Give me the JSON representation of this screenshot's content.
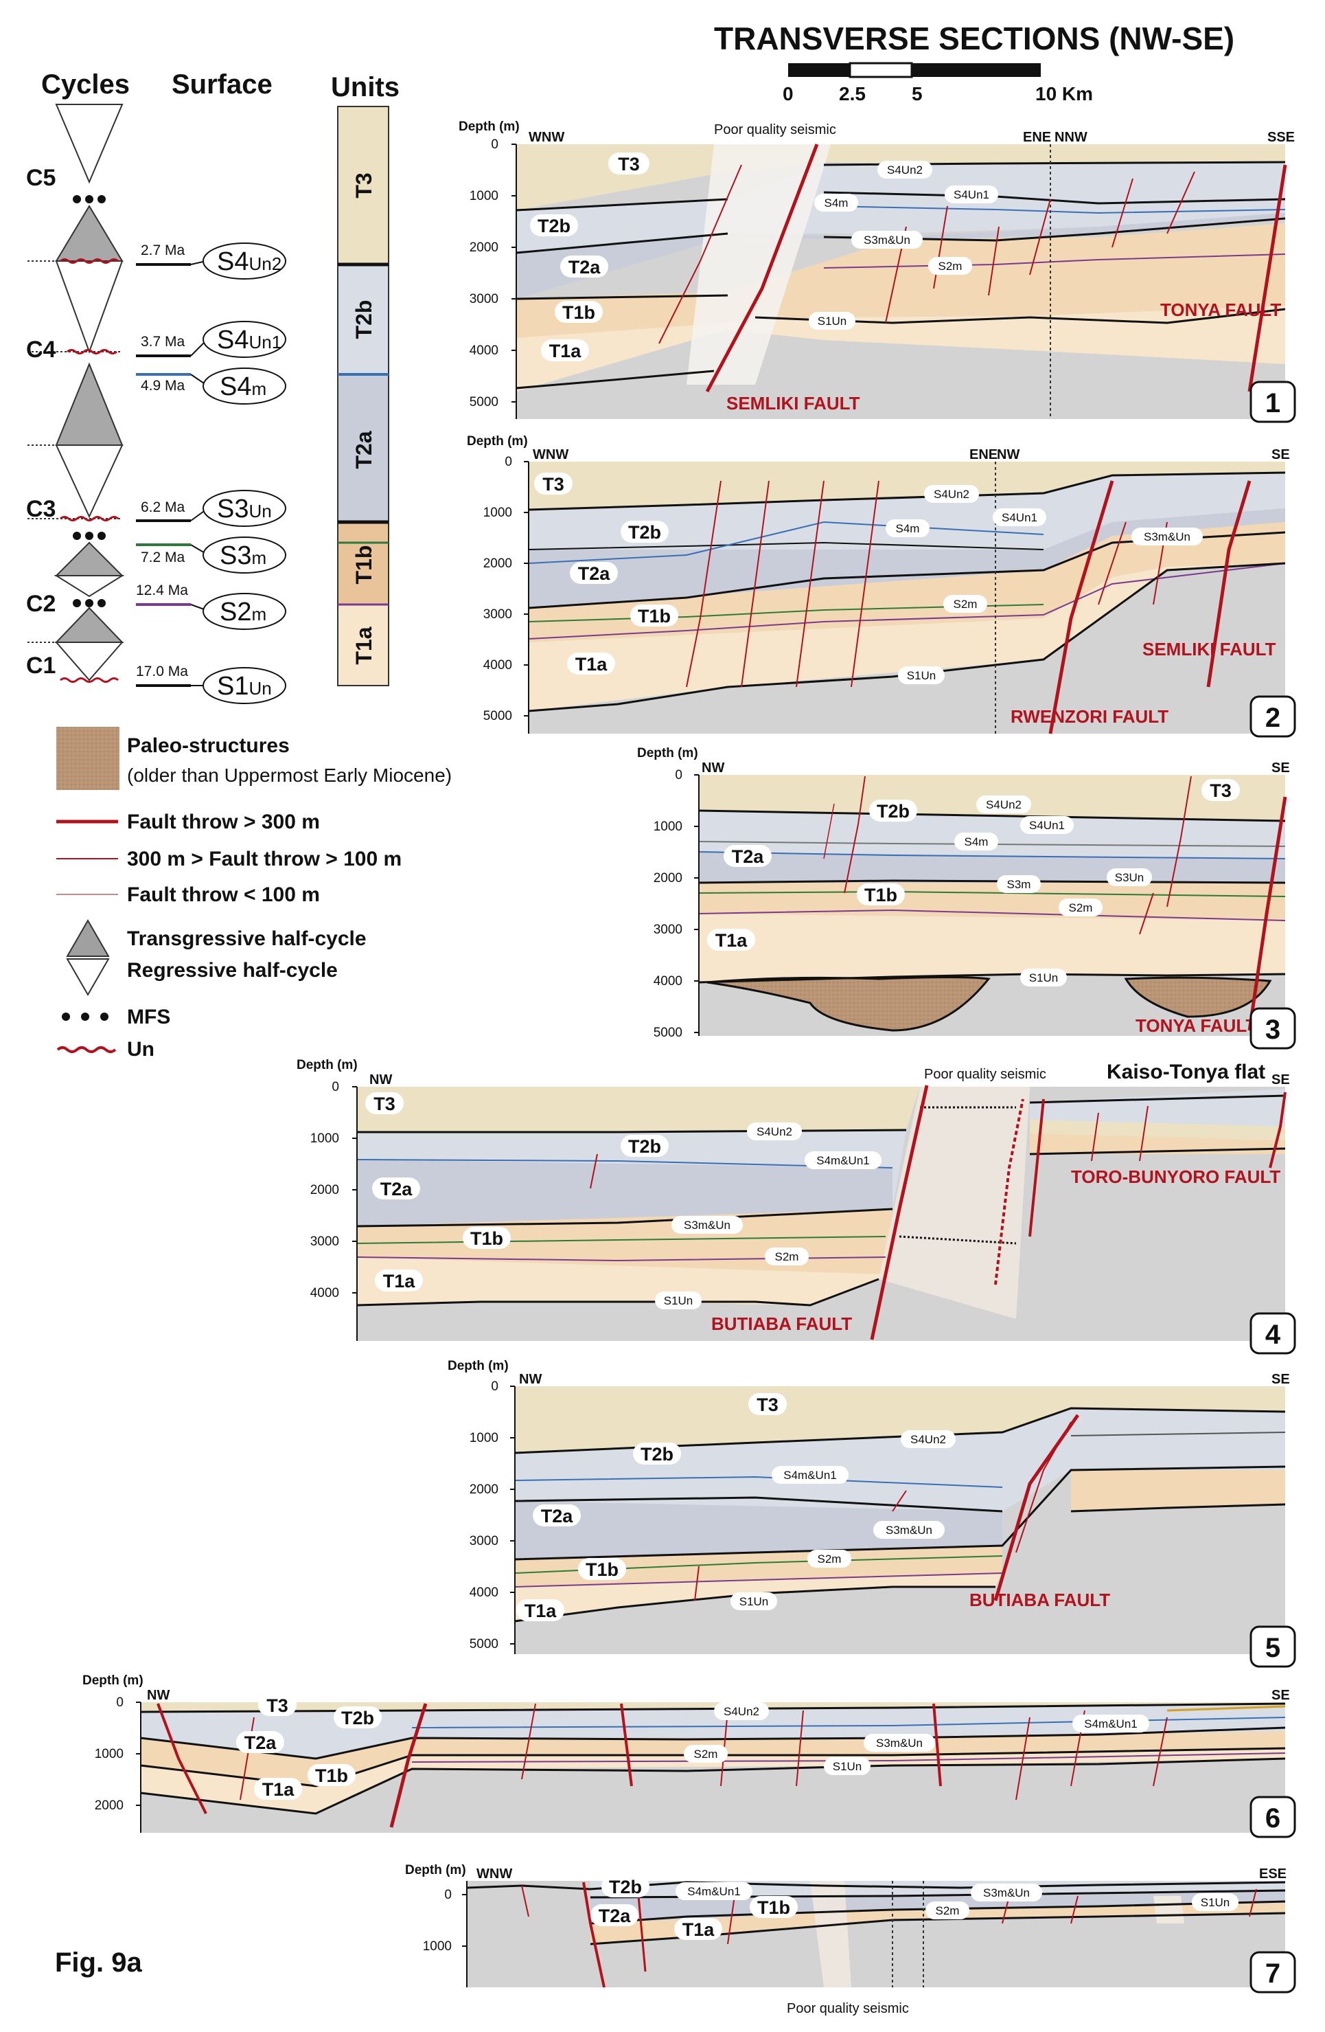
{
  "title": "TRANSVERSE SECTIONS (NW-SE)",
  "scale_bar": {
    "labels": [
      "0",
      "2.5",
      "5",
      "10 Km"
    ]
  },
  "figure_label": "Fig. 9a",
  "poor_quality_label": "Poor quality seismic",
  "depth_label": "Depth (m)",
  "column_headers": {
    "cycles": "Cycles",
    "surface": "Surface",
    "units": "Units"
  },
  "cycles": [
    "C5",
    "C4",
    "C3",
    "C2",
    "C1"
  ],
  "surfaces": [
    {
      "age": "2.7 Ma",
      "name": "S4",
      "sub": "Un2"
    },
    {
      "age": "3.7 Ma",
      "name": "S4",
      "sub": "Un1"
    },
    {
      "age": "4.9 Ma",
      "name": "S4",
      "sub": "m"
    },
    {
      "age": "6.2 Ma",
      "name": "S3",
      "sub": "Un"
    },
    {
      "age": "7.2 Ma",
      "name": "S3",
      "sub": "m"
    },
    {
      "age": "12.4 Ma",
      "name": "S2",
      "sub": "m"
    },
    {
      "age": "17.0 Ma",
      "name": "S1",
      "sub": "Un"
    }
  ],
  "units_column": [
    "T3",
    "T2b",
    "T2a",
    "T1b",
    "T1a"
  ],
  "legend": {
    "paleo_title": "Paleo-structures",
    "paleo_sub": "(older than Uppermost Early Miocene)",
    "fault_major": "Fault throw > 300 m",
    "fault_medium": "300 m > Fault throw > 100 m",
    "fault_minor": "Fault throw < 100 m",
    "transgressive": "Transgressive half-cycle",
    "regressive": "Regressive half-cycle",
    "mfs": "MFS",
    "un": "Un"
  },
  "colors": {
    "T3": "#ece2c3",
    "T2b": "#d9dde6",
    "T2a": "#c9ccd9",
    "T1b": "#f2d8b5",
    "T1a": "#f8e6cc",
    "basement": "#d3d3d3",
    "paleo": "#b99575",
    "fault_red": "#b2121e",
    "s4m_blue": "#3a6fb5",
    "s3m_green": "#2f7a3a",
    "s2m_purple": "#7a3a8e"
  },
  "sections": [
    {
      "number": "1",
      "ticks": [
        "0",
        "1000",
        "2000",
        "3000",
        "4000",
        "5000"
      ],
      "dirs": [
        "WNW",
        "ENE",
        "NNW",
        "SSE"
      ],
      "units": [
        "T3",
        "T2b",
        "T2a",
        "T1b",
        "T1a"
      ],
      "surfaces": [
        "S4Un2",
        "S4m",
        "S4Un1",
        "S3m&Un",
        "S2m",
        "S1Un"
      ],
      "faults": [
        "SEMLIKI FAULT",
        "TONYA FAULT"
      ],
      "note": "Poor quality seismic"
    },
    {
      "number": "2",
      "ticks": [
        "0",
        "1000",
        "2000",
        "3000",
        "4000",
        "5000"
      ],
      "dirs": [
        "WNW",
        "ENE",
        "NW",
        "SE"
      ],
      "units": [
        "T3",
        "T2b",
        "T2a",
        "T1b",
        "T1a"
      ],
      "surfaces": [
        "S4Un2",
        "S4m",
        "S4Un1",
        "S3m&Un",
        "S2m",
        "S1Un"
      ],
      "faults": [
        "SEMLIKI FAULT",
        "RWENZORI FAULT"
      ]
    },
    {
      "number": "3",
      "ticks": [
        "0",
        "1000",
        "2000",
        "3000",
        "4000",
        "5000"
      ],
      "dirs": [
        "NW",
        "SE"
      ],
      "units": [
        "T2b",
        "T3",
        "T2a",
        "T1b",
        "T1a"
      ],
      "surfaces": [
        "S4Un2",
        "S4Un1",
        "S4m",
        "S3m",
        "S3Un",
        "S2m",
        "S1Un"
      ],
      "faults": [
        "TONYA FAULT"
      ]
    },
    {
      "number": "4",
      "ticks": [
        "0",
        "1000",
        "2000",
        "3000",
        "4000"
      ],
      "dirs": [
        "NW",
        "SE"
      ],
      "units": [
        "T3",
        "T2b",
        "T2a",
        "T1b",
        "T1a"
      ],
      "surfaces": [
        "S4Un2",
        "S4m&Un1",
        "S3m&Un",
        "S2m",
        "S1Un"
      ],
      "faults": [
        "TORO-BUNYORO FAULT",
        "BUTIABA FAULT"
      ],
      "note": "Poor quality seismic",
      "extra": "Kaiso-Tonya flat"
    },
    {
      "number": "5",
      "ticks": [
        "0",
        "1000",
        "2000",
        "3000",
        "4000",
        "5000"
      ],
      "dirs": [
        "NW",
        "SE"
      ],
      "units": [
        "T3",
        "T2b",
        "T2a",
        "T1b",
        "T1a"
      ],
      "surfaces": [
        "S4Un2",
        "S4m&Un1",
        "S3m&Un",
        "S2m",
        "S1Un"
      ],
      "faults": [
        "BUTIABA FAULT"
      ]
    },
    {
      "number": "6",
      "ticks": [
        "0",
        "1000",
        "2000"
      ],
      "dirs": [
        "NW",
        "SE"
      ],
      "units": [
        "T3",
        "T2b",
        "T2a",
        "T1b",
        "T1a"
      ],
      "surfaces": [
        "S4Un2",
        "S4m&Un1",
        "S3m&Un",
        "S2m",
        "S1Un"
      ]
    },
    {
      "number": "7",
      "ticks": [
        "0",
        "1000"
      ],
      "dirs": [
        "WNW",
        "ESE"
      ],
      "units": [
        "T2b",
        "T2a",
        "T1b",
        "T1a"
      ],
      "surfaces": [
        "S4m&Un1",
        "S3m&Un",
        "S2m",
        "S1Un"
      ],
      "note": "Poor quality seismic"
    }
  ]
}
